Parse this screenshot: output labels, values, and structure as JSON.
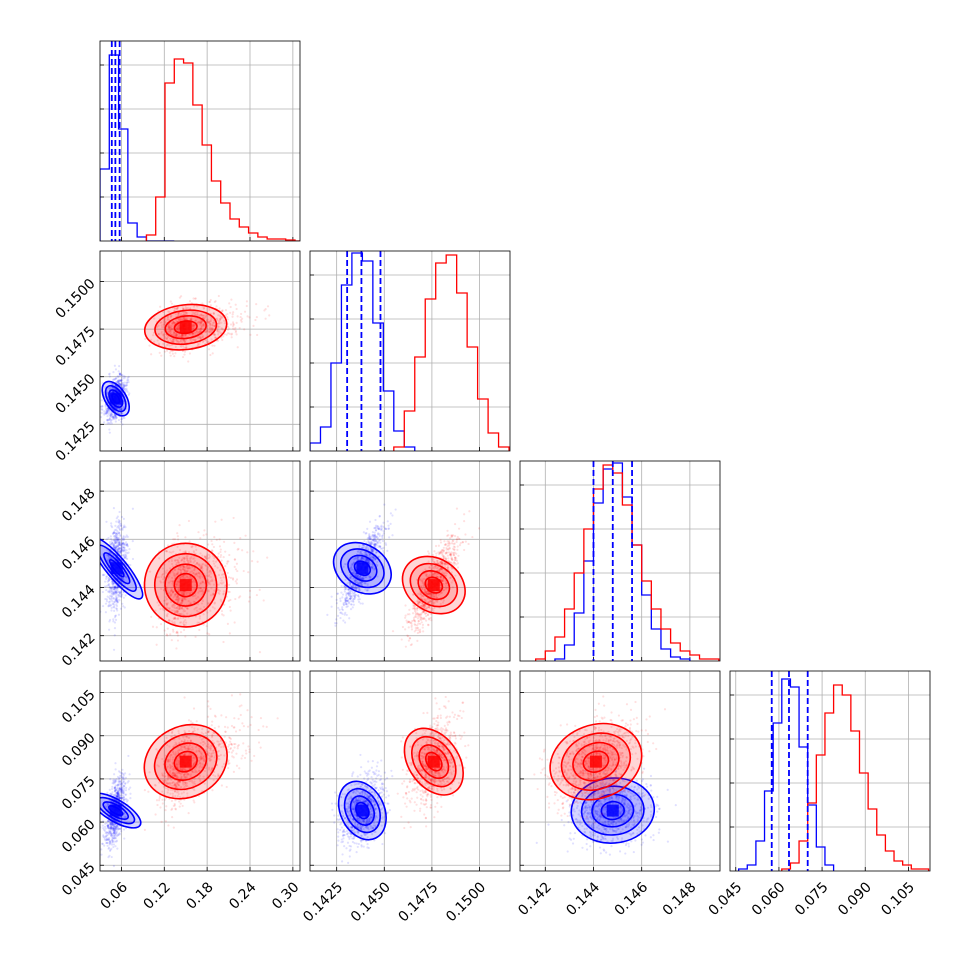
{
  "figure": {
    "type": "corner-plot",
    "background": "#ffffff",
    "grid": true
  },
  "chart_data": [
    {
      "type": "histogram",
      "panel": "p1-hist",
      "xlim": [
        0.03,
        0.31
      ],
      "x_ticks": [
        0.06,
        0.12,
        0.18,
        0.24,
        0.3
      ],
      "x_tick_labels": [
        "0.06",
        "0.12",
        "0.18",
        "0.24",
        "0.30"
      ],
      "series": [
        {
          "color": "#0000ff",
          "bins": [
            0.03,
            0.043,
            0.056,
            0.069,
            0.082,
            0.095,
            0.108,
            0.121,
            0.134
          ],
          "values": [
            0.36,
            0.93,
            0.56,
            0.09,
            0.02,
            0.0,
            0.0,
            0.0
          ],
          "quantiles": [
            0.0465,
            0.0515,
            0.0575
          ]
        },
        {
          "color": "#ff0000",
          "bins": [
            0.095,
            0.108,
            0.121,
            0.134,
            0.147,
            0.16,
            0.173,
            0.186,
            0.199,
            0.212,
            0.225,
            0.238,
            0.251,
            0.264,
            0.277,
            0.29,
            0.303,
            0.316
          ],
          "values": [
            0.03,
            0.22,
            0.79,
            0.91,
            0.89,
            0.68,
            0.48,
            0.3,
            0.19,
            0.11,
            0.07,
            0.04,
            0.02,
            0.01,
            0.01,
            0.005,
            0.0
          ]
        }
      ]
    },
    {
      "type": "histogram",
      "panel": "p2-hist",
      "xlim": [
        0.1411,
        0.1516
      ],
      "x_ticks": [
        0.1425,
        0.145,
        0.1475,
        0.15
      ],
      "x_tick_labels": [
        "0.1425",
        "0.1450",
        "0.1475",
        "0.1500"
      ],
      "series": [
        {
          "color": "#0000ff",
          "bins": [
            0.1411,
            0.14165,
            0.1422,
            0.14275,
            0.1433,
            0.14385,
            0.1444,
            0.14495,
            0.1455,
            0.14605,
            0.1466
          ],
          "values": [
            0.04,
            0.12,
            0.44,
            0.83,
            0.99,
            0.95,
            0.64,
            0.3,
            0.1,
            0.02
          ]
        },
        {
          "color": "#ff0000",
          "bins": [
            0.1455,
            0.14605,
            0.1466,
            0.14715,
            0.1477,
            0.14825,
            0.1488,
            0.14935,
            0.1499,
            0.15045,
            0.151,
            0.15155
          ],
          "values": [
            0.02,
            0.2,
            0.47,
            0.76,
            0.94,
            0.98,
            0.79,
            0.52,
            0.26,
            0.09,
            0.02
          ]
        }
      ],
      "quantiles": [
        0.14305,
        0.1438,
        0.1448
      ]
    },
    {
      "type": "histogram",
      "panel": "p3-hist",
      "xlim": [
        0.14095,
        0.14925
      ],
      "x_ticks": [
        0.142,
        0.144,
        0.146,
        0.148
      ],
      "x_tick_labels": [
        "0.142",
        "0.144",
        "0.146",
        "0.148"
      ],
      "series": [
        {
          "color": "#0000ff",
          "bins": [
            0.1424,
            0.1428,
            0.1432,
            0.1436,
            0.144,
            0.1444,
            0.1448,
            0.1452,
            0.1456,
            0.146,
            0.1464,
            0.1468,
            0.1472,
            0.1476,
            0.148
          ],
          "values": [
            0.01,
            0.08,
            0.24,
            0.5,
            0.79,
            0.96,
            0.99,
            0.82,
            0.58,
            0.33,
            0.16,
            0.06,
            0.02,
            0.01
          ]
        },
        {
          "color": "#ff0000",
          "bins": [
            0.1416,
            0.142,
            0.1424,
            0.1428,
            0.1432,
            0.1436,
            0.144,
            0.1444,
            0.1448,
            0.1452,
            0.1456,
            0.146,
            0.1464,
            0.1468,
            0.1472,
            0.1476,
            0.148,
            0.1484,
            0.1488,
            0.1492
          ],
          "values": [
            0.01,
            0.05,
            0.12,
            0.26,
            0.44,
            0.66,
            0.86,
            0.98,
            0.94,
            0.78,
            0.58,
            0.4,
            0.26,
            0.16,
            0.09,
            0.05,
            0.03,
            0.01,
            0.01
          ]
        }
      ],
      "quantiles": [
        0.144,
        0.1448,
        0.1456
      ]
    },
    {
      "type": "histogram",
      "panel": "p4-hist",
      "xlim": [
        0.043,
        0.1125
      ],
      "x_ticks": [
        0.045,
        0.06,
        0.075,
        0.09,
        0.105
      ],
      "x_tick_labels": [
        "0.045",
        "0.060",
        "0.075",
        "0.090",
        "0.105"
      ],
      "series": [
        {
          "color": "#0000ff",
          "bins": [
            0.046,
            0.049,
            0.052,
            0.055,
            0.058,
            0.061,
            0.064,
            0.067,
            0.07,
            0.073,
            0.076,
            0.079
          ],
          "values": [
            0.01,
            0.03,
            0.15,
            0.4,
            0.74,
            0.96,
            0.92,
            0.62,
            0.33,
            0.12,
            0.03
          ]
        },
        {
          "color": "#ff0000",
          "bins": [
            0.061,
            0.064,
            0.067,
            0.07,
            0.073,
            0.076,
            0.079,
            0.082,
            0.085,
            0.088,
            0.091,
            0.094,
            0.097,
            0.1,
            0.103,
            0.106,
            0.109,
            0.112
          ],
          "values": [
            0.01,
            0.04,
            0.15,
            0.34,
            0.58,
            0.79,
            0.93,
            0.88,
            0.7,
            0.49,
            0.31,
            0.18,
            0.1,
            0.05,
            0.03,
            0.01,
            0.01
          ]
        }
      ],
      "quantiles": [
        0.0575,
        0.0635,
        0.07
      ]
    },
    {
      "type": "scatter",
      "panel": "p21",
      "xlim": [
        0.03,
        0.31
      ],
      "ylim": [
        0.1411,
        0.1516
      ],
      "y_ticks": [
        0.1425,
        0.145,
        0.1475,
        0.15
      ],
      "y_tick_labels": [
        "0.1425",
        "0.1450",
        "0.1475",
        "0.1500"
      ],
      "series": [
        {
          "color": "#0000ff",
          "center": [
            0.052,
            0.14385
          ],
          "spread": [
            0.007,
            0.00055
          ],
          "corr": 0.3
        },
        {
          "color": "#ff0000",
          "center": [
            0.15,
            0.1476
          ],
          "spread": [
            0.028,
            0.00062
          ],
          "corr": 0.2
        }
      ]
    },
    {
      "type": "scatter",
      "panel": "p31",
      "xlim": [
        0.03,
        0.31
      ],
      "ylim": [
        0.14095,
        0.14925
      ],
      "y_ticks": [
        0.142,
        0.144,
        0.146,
        0.148
      ],
      "y_tick_labels": [
        "0.142",
        "0.144",
        "0.146",
        "0.148"
      ],
      "series": [
        {
          "color": "#0000ff",
          "center": [
            0.0535,
            0.1448
          ],
          "spread": [
            0.007,
            0.00085
          ],
          "corr": 0.2
        },
        {
          "color": "#ff0000",
          "center": [
            0.15,
            0.1441
          ],
          "spread": [
            0.028,
            0.00092
          ],
          "corr": 0.2
        }
      ]
    },
    {
      "type": "scatter",
      "panel": "p32",
      "xlim": [
        0.1411,
        0.1516
      ],
      "ylim": [
        0.14095,
        0.14925
      ],
      "series": [
        {
          "color": "#0000ff",
          "center": [
            0.14385,
            0.1448
          ],
          "spread": [
            0.00055,
            0.00085
          ],
          "corr": 0.8
        },
        {
          "color": "#ff0000",
          "center": [
            0.1476,
            0.1441
          ],
          "spread": [
            0.00062,
            0.00092
          ],
          "corr": 0.8
        }
      ]
    },
    {
      "type": "scatter",
      "panel": "p41",
      "xlim": [
        0.03,
        0.31
      ],
      "ylim": [
        0.043,
        0.1125
      ],
      "y_ticks": [
        0.045,
        0.06,
        0.075,
        0.09,
        0.105
      ],
      "y_tick_labels": [
        "0.045",
        "0.060",
        "0.075",
        "0.090",
        "0.105"
      ],
      "series": [
        {
          "color": "#0000ff",
          "center": [
            0.052,
            0.064
          ],
          "spread": [
            0.007,
            0.0058
          ],
          "corr": 0.5
        },
        {
          "color": "#ff0000",
          "center": [
            0.15,
            0.081
          ],
          "spread": [
            0.028,
            0.0072
          ],
          "corr": 0.5
        }
      ]
    },
    {
      "type": "scatter",
      "panel": "p42",
      "xlim": [
        0.1411,
        0.1516
      ],
      "ylim": [
        0.043,
        0.1125
      ],
      "series": [
        {
          "color": "#0000ff",
          "center": [
            0.14385,
            0.064
          ],
          "spread": [
            0.00055,
            0.0058
          ],
          "corr": 0.3
        },
        {
          "color": "#ff0000",
          "center": [
            0.1476,
            0.081
          ],
          "spread": [
            0.00062,
            0.0072
          ],
          "corr": 0.4
        }
      ]
    },
    {
      "type": "scatter",
      "panel": "p43",
      "xlim": [
        0.14095,
        0.14925
      ],
      "ylim": [
        0.043,
        0.1125
      ],
      "series": [
        {
          "color": "#0000ff",
          "center": [
            0.1448,
            0.064
          ],
          "spread": [
            0.00085,
            0.0058
          ],
          "corr": 0.1
        },
        {
          "color": "#ff0000",
          "center": [
            0.1441,
            0.081
          ],
          "spread": [
            0.00092,
            0.0072
          ],
          "corr": 0.4
        }
      ]
    }
  ]
}
